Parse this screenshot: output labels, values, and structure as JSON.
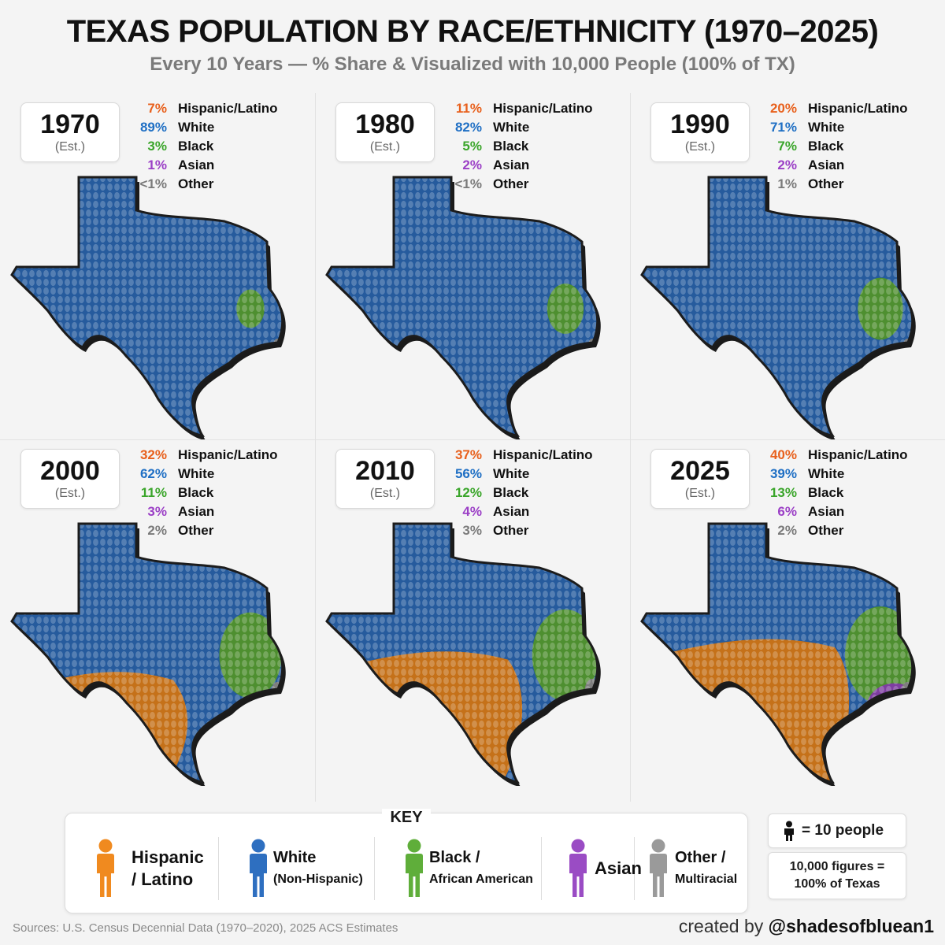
{
  "title": "TEXAS POPULATION BY RACE/ETHNICITY (1970–2025)",
  "subtitle": "Every 10 Years — % Share & Visualized with 10,000 People (100% of TX)",
  "colors": {
    "hispanic": "#f08a1f",
    "white": "#2e6fc0",
    "black": "#5fae3a",
    "asian": "#9a4cc4",
    "other": "#9a9a9a",
    "hispanic_text": "#e8601c",
    "white_text": "#1f6fc4",
    "black_text": "#3aa52a",
    "asian_text": "#9b3fc6",
    "other_text": "#7a7a7a"
  },
  "panels": [
    {
      "year": "1970",
      "est": "(Est.)",
      "stats": [
        {
          "pct": "7%",
          "label": "Hispanic/Latino",
          "key": "hispanic"
        },
        {
          "pct": "89%",
          "label": "White",
          "key": "white"
        },
        {
          "pct": "3%",
          "label": "Black",
          "key": "black"
        },
        {
          "pct": "1%",
          "label": "Asian",
          "key": "asian"
        },
        {
          "pct": "<1%",
          "label": "Other",
          "key": "other"
        }
      ]
    },
    {
      "year": "1980",
      "est": "(Est.)",
      "stats": [
        {
          "pct": "11%",
          "label": "Hispanic/Latino",
          "key": "hispanic"
        },
        {
          "pct": "82%",
          "label": "White",
          "key": "white"
        },
        {
          "pct": "5%",
          "label": "Black",
          "key": "black"
        },
        {
          "pct": "2%",
          "label": "Asian",
          "key": "asian"
        },
        {
          "pct": "<1%",
          "label": "Other",
          "key": "other"
        }
      ]
    },
    {
      "year": "1990",
      "est": "(Est.)",
      "stats": [
        {
          "pct": "20%",
          "label": "Hispanic/Latino",
          "key": "hispanic"
        },
        {
          "pct": "71%",
          "label": "White",
          "key": "white"
        },
        {
          "pct": "7%",
          "label": "Black",
          "key": "black"
        },
        {
          "pct": "2%",
          "label": "Asian",
          "key": "asian"
        },
        {
          "pct": "1%",
          "label": "Other",
          "key": "other"
        }
      ]
    },
    {
      "year": "2000",
      "est": "(Est.)",
      "stats": [
        {
          "pct": "32%",
          "label": "Hispanic/Latino",
          "key": "hispanic"
        },
        {
          "pct": "62%",
          "label": "White",
          "key": "white"
        },
        {
          "pct": "11%",
          "label": "Black",
          "key": "black"
        },
        {
          "pct": "3%",
          "label": "Asian",
          "key": "asian"
        },
        {
          "pct": "2%",
          "label": "Other",
          "key": "other"
        }
      ]
    },
    {
      "year": "2010",
      "est": "(Est.)",
      "stats": [
        {
          "pct": "37%",
          "label": "Hispanic/Latino",
          "key": "hispanic"
        },
        {
          "pct": "56%",
          "label": "White",
          "key": "white"
        },
        {
          "pct": "12%",
          "label": "Black",
          "key": "black"
        },
        {
          "pct": "4%",
          "label": "Asian",
          "key": "asian"
        },
        {
          "pct": "3%",
          "label": "Other",
          "key": "other"
        }
      ]
    },
    {
      "year": "2025",
      "est": "(Est.)",
      "stats": [
        {
          "pct": "40%",
          "label": "Hispanic/Latino",
          "key": "hispanic"
        },
        {
          "pct": "39%",
          "label": "White",
          "key": "white"
        },
        {
          "pct": "13%",
          "label": "Black",
          "key": "black"
        },
        {
          "pct": "6%",
          "label": "Asian",
          "key": "asian"
        },
        {
          "pct": "2%",
          "label": "Other",
          "key": "other"
        }
      ]
    }
  ],
  "key": {
    "title": "KEY",
    "items": [
      {
        "line1": "Hispanic",
        "line2": "/ Latino",
        "key": "hispanic",
        "icon": "person-icon"
      },
      {
        "line1": "White",
        "line2": "(Non-Hispanic)",
        "key": "white",
        "icon": "person-icon"
      },
      {
        "line1": "Black /",
        "line2": "African American",
        "key": "black",
        "icon": "person-icon"
      },
      {
        "line1": "Asian",
        "line2": "",
        "key": "asian",
        "icon": "person-icon"
      },
      {
        "line1": "Other /",
        "line2": "Multiracial",
        "key": "other",
        "icon": "person-icon"
      }
    ]
  },
  "scale": {
    "people": "= 10 people",
    "figures_line1": "10,000 figures =",
    "figures_line2": "100% of Texas"
  },
  "sources": "Sources: U.S. Census Decennial Data (1970–2020), 2025 ACS Estimates",
  "credit_prefix": "created by",
  "credit_handle": "@shadesofbluean1"
}
